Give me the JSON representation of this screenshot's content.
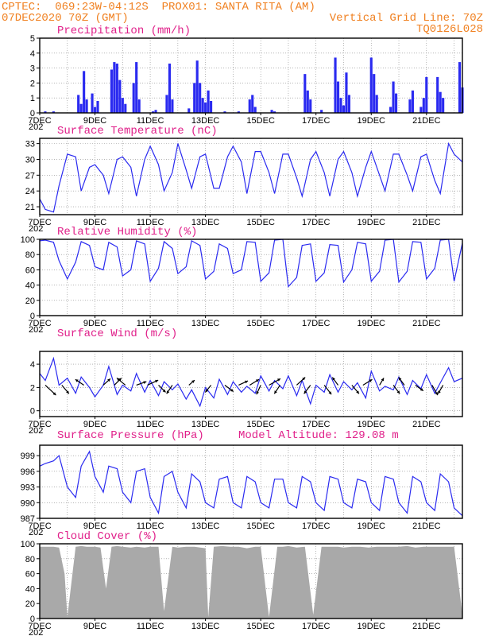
{
  "header": {
    "line1_left": "CPTEC:  069:23W-04:12S  PROX01: SANTA RITA (AM)",
    "line2_left": "07DEC2020 70Z (GMT)",
    "line2_right": "Vertical Grid Line: 70Z",
    "line3_right": "TQ0126L028"
  },
  "x_axis": {
    "tick_labels": [
      "7DEC",
      "9DEC",
      "11DEC",
      "13DEC",
      "15DEC",
      "17DEC",
      "19DEC",
      "21DEC"
    ],
    "tick_days": [
      0,
      2,
      4,
      6,
      8,
      10,
      12,
      14
    ],
    "range_days": [
      0,
      15.3
    ],
    "grid_step_days": 1,
    "partial_label": "202"
  },
  "chart_data": [
    {
      "id": "precip",
      "type": "bar",
      "title": "Precipitation (mm/h)",
      "ylim": [
        0,
        5
      ],
      "yticks": [
        0,
        1,
        2,
        3,
        4,
        5
      ],
      "color": "#2a2af0",
      "x_days": [
        0.2,
        0.5,
        1.4,
        1.5,
        1.6,
        1.7,
        1.9,
        2.0,
        2.1,
        2.6,
        2.7,
        2.8,
        2.9,
        3.0,
        3.1,
        3.4,
        3.5,
        3.6,
        4.1,
        4.2,
        4.6,
        4.7,
        4.8,
        5.4,
        5.6,
        5.7,
        5.8,
        5.9,
        6.0,
        6.1,
        6.2,
        6.7,
        7.2,
        7.6,
        7.7,
        7.8,
        8.4,
        8.5,
        9.6,
        9.7,
        9.8,
        10.2,
        10.7,
        10.8,
        10.9,
        11.0,
        11.1,
        11.2,
        12.0,
        12.1,
        12.2,
        12.7,
        12.8,
        12.9,
        13.4,
        13.5,
        13.8,
        13.9,
        14.0,
        14.4,
        14.5,
        14.6,
        15.2,
        15.3
      ],
      "values": [
        0.1,
        0.1,
        1.2,
        0.6,
        2.8,
        0.9,
        1.3,
        0.4,
        0.8,
        2.9,
        3.4,
        3.3,
        2.2,
        1.0,
        0.6,
        2.0,
        3.4,
        0.9,
        0.1,
        0.2,
        1.2,
        3.3,
        0.9,
        0.3,
        2.0,
        3.5,
        2.0,
        1.0,
        0.7,
        1.5,
        0.8,
        0.1,
        0.1,
        0.9,
        1.2,
        0.4,
        0.2,
        0.1,
        2.6,
        1.5,
        0.9,
        0.2,
        3.7,
        2.1,
        1.0,
        0.5,
        2.7,
        1.2,
        3.7,
        2.6,
        1.2,
        0.4,
        2.1,
        1.3,
        0.9,
        1.5,
        0.4,
        1.0,
        2.4,
        2.4,
        1.4,
        1.0,
        3.4,
        1.7
      ]
    },
    {
      "id": "temp",
      "type": "line",
      "title": "Surface Temperature (nC)",
      "ylim": [
        19.5,
        34
      ],
      "yticks": [
        21,
        24,
        27,
        30,
        33
      ],
      "color": "#2a2af0",
      "x_days": [
        0.0,
        0.2,
        0.5,
        0.7,
        1.0,
        1.3,
        1.5,
        1.8,
        2.0,
        2.3,
        2.5,
        2.8,
        3.0,
        3.3,
        3.5,
        3.8,
        4.0,
        4.3,
        4.5,
        4.8,
        5.0,
        5.3,
        5.5,
        5.8,
        6.0,
        6.3,
        6.5,
        6.8,
        7.0,
        7.3,
        7.5,
        7.8,
        8.0,
        8.3,
        8.5,
        8.8,
        9.0,
        9.3,
        9.5,
        9.8,
        10.0,
        10.3,
        10.5,
        10.8,
        11.0,
        11.3,
        11.5,
        11.8,
        12.0,
        12.3,
        12.5,
        12.8,
        13.0,
        13.3,
        13.5,
        13.8,
        14.0,
        14.3,
        14.5,
        14.8,
        15.0,
        15.3
      ],
      "values": [
        22.5,
        20.5,
        20.0,
        25.0,
        31.0,
        30.5,
        24.0,
        28.5,
        29.0,
        27.0,
        23.5,
        30.0,
        30.5,
        28.5,
        23.0,
        30.0,
        32.5,
        29.0,
        24.0,
        27.5,
        33.0,
        28.0,
        24.5,
        30.5,
        31.0,
        24.5,
        24.5,
        30.5,
        32.5,
        29.5,
        23.5,
        31.5,
        31.5,
        27.5,
        23.5,
        31.0,
        31.0,
        26.5,
        23.0,
        30.0,
        31.5,
        27.5,
        23.0,
        30.0,
        31.5,
        27.5,
        23.0,
        28.5,
        31.5,
        27.0,
        24.0,
        31.0,
        31.0,
        27.0,
        24.0,
        30.5,
        31.0,
        26.0,
        23.5,
        33.0,
        31.0,
        29.5
      ]
    },
    {
      "id": "rh",
      "type": "line",
      "title": "Relative Humidity (%)",
      "ylim": [
        0,
        100
      ],
      "yticks": [
        0,
        20,
        40,
        60,
        80,
        100
      ],
      "color": "#2a2af0",
      "x_days": [
        0.0,
        0.2,
        0.5,
        0.7,
        1.0,
        1.3,
        1.5,
        1.8,
        2.0,
        2.3,
        2.5,
        2.8,
        3.0,
        3.3,
        3.5,
        3.8,
        4.0,
        4.3,
        4.5,
        4.8,
        5.0,
        5.3,
        5.5,
        5.8,
        6.0,
        6.3,
        6.5,
        6.8,
        7.0,
        7.3,
        7.5,
        7.8,
        8.0,
        8.3,
        8.5,
        8.8,
        9.0,
        9.3,
        9.5,
        9.8,
        10.0,
        10.3,
        10.5,
        10.8,
        11.0,
        11.3,
        11.5,
        11.8,
        12.0,
        12.3,
        12.5,
        12.8,
        13.0,
        13.3,
        13.5,
        13.8,
        14.0,
        14.3,
        14.5,
        14.8,
        15.0,
        15.3
      ],
      "values": [
        98,
        99,
        96,
        72,
        48,
        70,
        97,
        92,
        64,
        60,
        96,
        90,
        52,
        60,
        98,
        94,
        45,
        62,
        97,
        88,
        55,
        64,
        98,
        92,
        48,
        58,
        94,
        88,
        55,
        60,
        97,
        96,
        45,
        56,
        99,
        100,
        38,
        50,
        92,
        94,
        45,
        56,
        93,
        92,
        44,
        60,
        96,
        94,
        45,
        58,
        99,
        100,
        44,
        58,
        97,
        96,
        48,
        62,
        99,
        100,
        45,
        95
      ]
    },
    {
      "id": "wind",
      "type": "line",
      "title": "Surface Wind (m/s)",
      "ylim": [
        -0.5,
        5.1
      ],
      "yticks": [
        0,
        2,
        4
      ],
      "color": "#2a2af0",
      "arrow_color": "#000000",
      "x_days": [
        0.0,
        0.2,
        0.5,
        0.7,
        1.0,
        1.3,
        1.5,
        1.8,
        2.0,
        2.3,
        2.5,
        2.8,
        3.0,
        3.3,
        3.5,
        3.8,
        4.0,
        4.3,
        4.5,
        4.8,
        5.0,
        5.3,
        5.5,
        5.8,
        6.0,
        6.3,
        6.5,
        6.8,
        7.0,
        7.3,
        7.5,
        7.8,
        8.0,
        8.3,
        8.5,
        8.8,
        9.0,
        9.3,
        9.5,
        9.8,
        10.0,
        10.3,
        10.5,
        10.8,
        11.0,
        11.3,
        11.5,
        11.8,
        12.0,
        12.3,
        12.5,
        12.8,
        13.0,
        13.3,
        13.5,
        13.8,
        14.0,
        14.3,
        14.5,
        14.8,
        15.0,
        15.3
      ],
      "values": [
        3.2,
        2.6,
        4.5,
        2.2,
        2.8,
        1.5,
        2.9,
        2.0,
        1.2,
        2.2,
        3.8,
        1.4,
        2.2,
        1.7,
        3.2,
        1.6,
        2.6,
        1.3,
        2.5,
        1.8,
        2.3,
        1.0,
        1.8,
        0.4,
        2.0,
        1.1,
        2.7,
        1.4,
        2.5,
        1.6,
        2.1,
        1.5,
        3.0,
        1.7,
        2.6,
        1.9,
        3.0,
        1.3,
        2.6,
        0.6,
        2.2,
        1.6,
        3.1,
        1.6,
        2.5,
        1.8,
        2.4,
        1.1,
        3.4,
        1.7,
        2.1,
        1.8,
        2.9,
        1.4,
        2.6,
        1.9,
        3.1,
        1.5,
        2.4,
        3.7,
        2.5,
        2.8
      ],
      "arrows": {
        "x_days": [
          0.2,
          0.8,
          1.6,
          2.3,
          2.7,
          3.1,
          3.5,
          3.9,
          4.3,
          4.8,
          5.4,
          6.2,
          6.7,
          7.2,
          7.6,
          8.0,
          8.3,
          8.7,
          9.3,
          9.8,
          10.3,
          10.8,
          11.3,
          11.7,
          12.3,
          12.8,
          13.2,
          13.6,
          14.2,
          14.6
        ],
        "u": [
          1.5,
          1.0,
          -1.2,
          1.0,
          1.0,
          -1.2,
          1.4,
          1.5,
          1.0,
          -0.8,
          0.8,
          -0.8,
          1.2,
          1.3,
          1.3,
          -0.6,
          1.6,
          -0.8,
          1.2,
          -0.9,
          1.0,
          -0.8,
          1.0,
          1.3,
          0.6,
          0.9,
          -0.8,
          1.1,
          0.8,
          -0.7
        ],
        "v": [
          -1.4,
          -1.2,
          0.8,
          0.9,
          1.0,
          1.0,
          0.5,
          0.7,
          -1.0,
          -1.2,
          0.7,
          -1.0,
          -0.9,
          0.6,
          0.8,
          -1.3,
          0.9,
          -1.2,
          1.1,
          -1.2,
          -1.3,
          1.1,
          -1.2,
          0.8,
          1.0,
          -1.2,
          1.1,
          -0.8,
          -1.4,
          -1.2
        ]
      }
    },
    {
      "id": "pres",
      "type": "line",
      "title": "Surface Pressure (hPa)",
      "extra_label": "Model Altitude: 129.08  m",
      "ylim": [
        987,
        1001
      ],
      "yticks": [
        987,
        990,
        993,
        996,
        999
      ],
      "color": "#2a2af0",
      "x_days": [
        0.0,
        0.2,
        0.5,
        0.7,
        1.0,
        1.3,
        1.5,
        1.8,
        2.0,
        2.3,
        2.5,
        2.8,
        3.0,
        3.3,
        3.5,
        3.8,
        4.0,
        4.3,
        4.5,
        4.8,
        5.0,
        5.3,
        5.5,
        5.8,
        6.0,
        6.3,
        6.5,
        6.8,
        7.0,
        7.3,
        7.5,
        7.8,
        8.0,
        8.3,
        8.5,
        8.8,
        9.0,
        9.3,
        9.5,
        9.8,
        10.0,
        10.3,
        10.5,
        10.8,
        11.0,
        11.3,
        11.5,
        11.8,
        12.0,
        12.3,
        12.5,
        12.8,
        13.0,
        13.3,
        13.5,
        13.8,
        14.0,
        14.3,
        14.5,
        14.8,
        15.0,
        15.3
      ],
      "values": [
        997,
        997.5,
        998,
        999,
        993,
        991,
        997,
        999.8,
        995,
        992,
        997,
        996.5,
        992,
        990,
        996,
        996.5,
        991,
        988,
        995,
        996,
        992,
        989,
        995.5,
        994,
        990,
        989,
        994.5,
        995,
        990,
        989,
        995,
        994,
        990,
        989,
        994.5,
        994.5,
        990,
        989,
        995,
        994,
        990,
        988.5,
        995,
        994.5,
        990,
        989,
        994.5,
        994,
        990,
        988.5,
        995,
        994.5,
        990,
        988,
        995,
        994,
        990,
        988.5,
        995.5,
        994,
        989,
        987.5
      ]
    },
    {
      "id": "cloud",
      "type": "area",
      "title": "Cloud Cover (%)",
      "ylim": [
        0,
        100
      ],
      "yticks": [
        0,
        20,
        40,
        60,
        80,
        100
      ],
      "color": "#a9a9a9",
      "x_days": [
        0.0,
        0.2,
        0.5,
        0.7,
        0.9,
        1.0,
        1.3,
        1.5,
        1.7,
        2.0,
        2.2,
        2.4,
        2.6,
        2.8,
        3.0,
        3.3,
        3.5,
        3.8,
        4.0,
        4.3,
        4.5,
        4.8,
        5.0,
        5.3,
        5.6,
        6.0,
        6.1,
        6.3,
        6.6,
        6.9,
        7.2,
        7.5,
        7.8,
        8.0,
        8.3,
        8.6,
        8.8,
        9.0,
        9.3,
        9.6,
        9.9,
        10.2,
        10.5,
        10.8,
        11.0,
        11.3,
        11.6,
        11.9,
        12.2,
        12.5,
        12.8,
        13.0,
        13.3,
        13.6,
        13.9,
        14.2,
        14.5,
        14.8,
        15.0,
        15.3
      ],
      "values": [
        96,
        96,
        96,
        95,
        60,
        2,
        96,
        97,
        96,
        96,
        95,
        40,
        96,
        97,
        96,
        95,
        96,
        95,
        96,
        96,
        10,
        96,
        95,
        96,
        96,
        94,
        2,
        96,
        97,
        96,
        96,
        94,
        96,
        96,
        2,
        96,
        96,
        97,
        95,
        96,
        5,
        96,
        96,
        96,
        95,
        96,
        96,
        95,
        96,
        96,
        96,
        96,
        97,
        95,
        96,
        96,
        96,
        96,
        96,
        5
      ]
    }
  ]
}
